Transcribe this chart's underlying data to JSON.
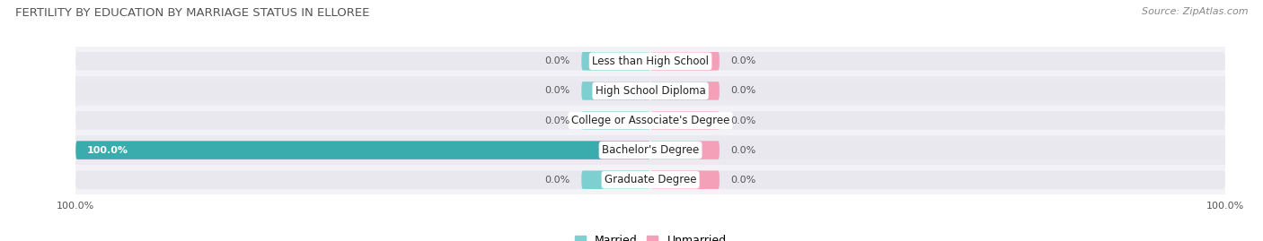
{
  "title": "FERTILITY BY EDUCATION BY MARRIAGE STATUS IN ELLOREE",
  "source": "Source: ZipAtlas.com",
  "categories": [
    "Less than High School",
    "High School Diploma",
    "College or Associate's Degree",
    "Bachelor's Degree",
    "Graduate Degree"
  ],
  "married_values": [
    0.0,
    0.0,
    0.0,
    100.0,
    0.0
  ],
  "unmarried_values": [
    0.0,
    0.0,
    0.0,
    0.0,
    0.0
  ],
  "married_color_light": "#7ecfcf",
  "married_color_dark": "#3aacad",
  "unmarried_color": "#f4a0b8",
  "track_color": "#e8e8ee",
  "row_bg_even": "#f2f2f7",
  "row_bg_odd": "#eaeaf0",
  "label_fontsize": 8.5,
  "value_fontsize": 8,
  "title_fontsize": 9.5,
  "source_fontsize": 8,
  "legend_fontsize": 9,
  "axis_limit": 100.0,
  "stub_size": 12.0,
  "background_color": "#ffffff"
}
